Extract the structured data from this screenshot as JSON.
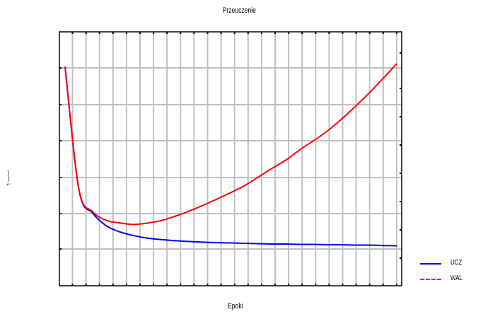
{
  "chart_data": {
    "type": "line",
    "title": "Przeuczenie",
    "xlabel": "Epoki",
    "ylabel": "",
    "xlim": [
      0,
      25
    ],
    "ylim": [
      0,
      7
    ],
    "grid": true,
    "legend_position": "right-bottom",
    "x": [
      1,
      2,
      3,
      4,
      5,
      6,
      7,
      8,
      9,
      10,
      11,
      12,
      13,
      14,
      15,
      16,
      17,
      18,
      19,
      20,
      21,
      22,
      23,
      24,
      25
    ],
    "series": [
      {
        "name": "UCZ",
        "color": "#0000ff",
        "style": "solid",
        "values": [
          6.04,
          2.65,
          2.0,
          1.65,
          1.48,
          1.38,
          1.31,
          1.27,
          1.24,
          1.22,
          1.2,
          1.19,
          1.18,
          1.17,
          1.16,
          1.15,
          1.15,
          1.14,
          1.14,
          1.13,
          1.13,
          1.12,
          1.12,
          1.11,
          1.1
        ]
      },
      {
        "name": "WAL",
        "color": "#ff0000",
        "style": "dashed",
        "values": [
          6.04,
          2.67,
          2.04,
          1.8,
          1.73,
          1.69,
          1.73,
          1.8,
          1.92,
          2.06,
          2.22,
          2.39,
          2.57,
          2.76,
          3.0,
          3.24,
          3.47,
          3.75,
          4.0,
          4.27,
          4.59,
          4.94,
          5.31,
          5.71,
          6.12
        ]
      }
    ]
  },
  "labels": {
    "title": "Przeuczenie",
    "xlabel": "Epoki",
    "ylabel_glyphs": ")\n)\n⌐"
  },
  "legend": [
    {
      "label": "UCZ",
      "color": "#0000ff",
      "style": "solid"
    },
    {
      "label": "WAL",
      "color": "#ff0000",
      "style": "dashed"
    }
  ]
}
